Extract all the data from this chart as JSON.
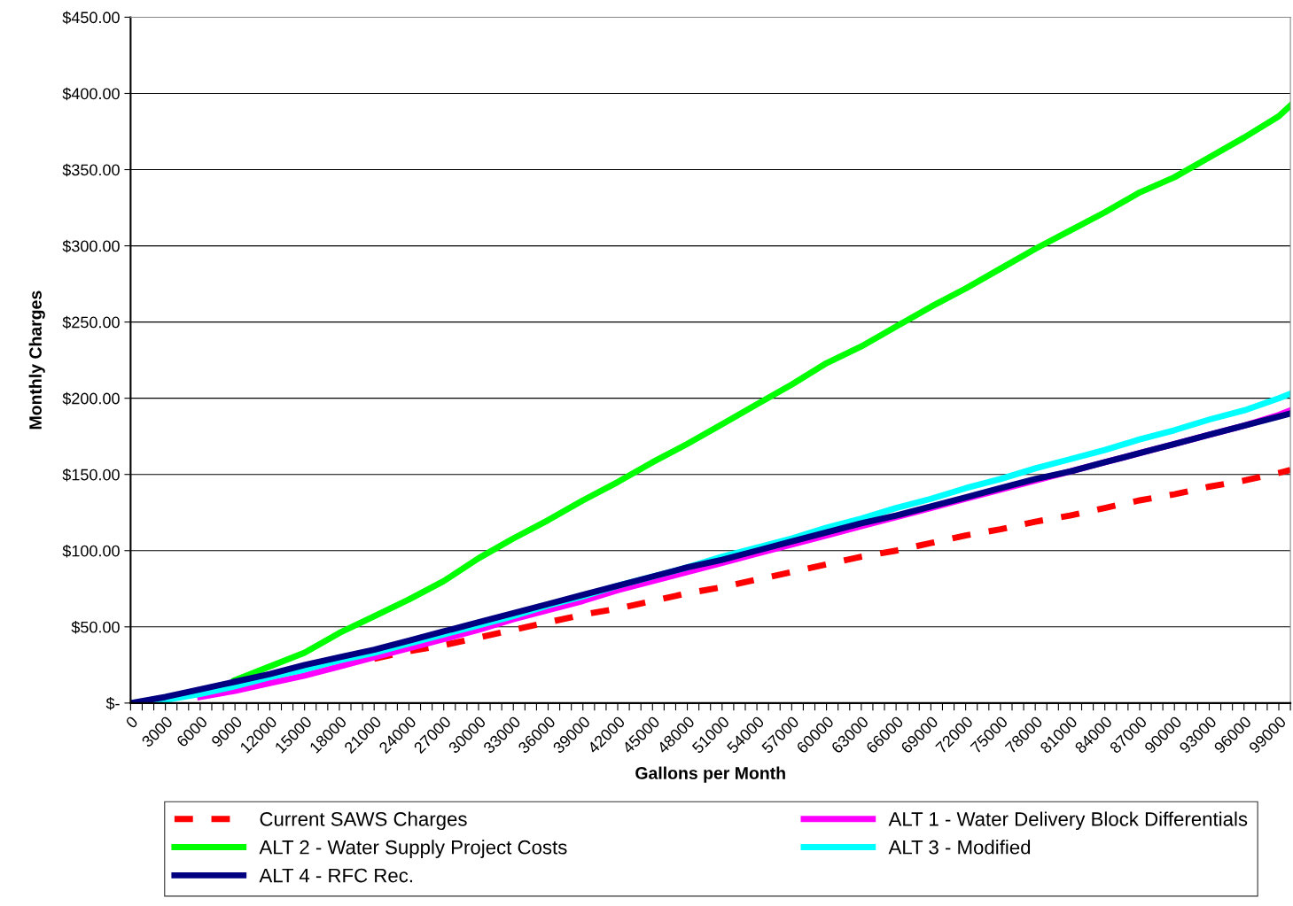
{
  "chart_data": {
    "type": "line",
    "xlabel": "Gallons per Month",
    "ylabel": "Monthly Charges",
    "x": [
      0,
      3000,
      6000,
      9000,
      12000,
      15000,
      18000,
      21000,
      24000,
      27000,
      30000,
      33000,
      36000,
      39000,
      42000,
      45000,
      48000,
      51000,
      54000,
      57000,
      60000,
      63000,
      66000,
      69000,
      72000,
      75000,
      78000,
      81000,
      84000,
      87000,
      90000,
      93000,
      96000,
      99000,
      100000
    ],
    "series": [
      {
        "name": "Current SAWS Charges",
        "color": "#ff0000",
        "line_style": "dashed",
        "values": [
          null,
          null,
          null,
          null,
          null,
          null,
          null,
          29,
          34,
          38,
          43,
          48,
          53,
          58,
          62,
          67,
          72,
          76,
          81,
          86,
          91,
          96,
          100,
          105,
          110,
          114,
          119,
          123,
          128,
          133,
          137,
          142,
          146,
          151,
          153
        ]
      },
      {
        "name": "ALT 1 - Water Delivery Block Differentials",
        "color": "#ff00ff",
        "values": [
          null,
          null,
          4,
          8,
          13,
          18,
          24,
          30,
          36,
          42,
          48,
          55,
          61,
          67,
          74,
          80,
          86,
          92,
          98,
          104,
          110,
          116,
          122,
          128,
          134,
          140,
          146,
          152,
          158,
          164,
          170,
          176,
          182,
          189,
          192
        ]
      },
      {
        "name": "ALT 2 - Water Supply Project Costs",
        "color": "#00ff00",
        "values": [
          null,
          null,
          null,
          15,
          24,
          33,
          46,
          57,
          68,
          80,
          95,
          108,
          120,
          133,
          145,
          158,
          170,
          183,
          196,
          209,
          223,
          234,
          247,
          260,
          272,
          285,
          298,
          310,
          322,
          335,
          345,
          358,
          371,
          385,
          392
        ]
      },
      {
        "name": "ALT 3 - Modified",
        "color": "#00ffff",
        "values": [
          0,
          2,
          6,
          11,
          17,
          22,
          28,
          33,
          39,
          45,
          51,
          57,
          64,
          70,
          77,
          83,
          89,
          96,
          102,
          108,
          115,
          121,
          128,
          134,
          141,
          147,
          154,
          160,
          166,
          173,
          179,
          186,
          192,
          200,
          203
        ]
      },
      {
        "name": "ALT 4 - RFC Rec.",
        "color": "#000080",
        "values": [
          0,
          4,
          9,
          14,
          19,
          25,
          30,
          35,
          41,
          47,
          53,
          59,
          65,
          71,
          77,
          83,
          89,
          94,
          100,
          106,
          112,
          118,
          123,
          129,
          135,
          141,
          147,
          152,
          158,
          164,
          170,
          176,
          182,
          188,
          190
        ]
      }
    ],
    "xlim": [
      0,
      100000
    ],
    "ylim": [
      0,
      450
    ],
    "yticks": [
      {
        "value": 0,
        "label": "$-"
      },
      {
        "value": 50,
        "label": "$50.00"
      },
      {
        "value": 100,
        "label": "$100.00"
      },
      {
        "value": 150,
        "label": "$150.00"
      },
      {
        "value": 200,
        "label": "$200.00"
      },
      {
        "value": 250,
        "label": "$250.00"
      },
      {
        "value": 300,
        "label": "$300.00"
      },
      {
        "value": 350,
        "label": "$350.00"
      },
      {
        "value": 400,
        "label": "$400.00"
      },
      {
        "value": 450,
        "label": "$450.00"
      }
    ],
    "xticks": [
      0,
      {
        "value": 1000,
        "label": null
      },
      {
        "value": 2000,
        "label": null
      },
      3000,
      {
        "value": 4000,
        "label": null
      },
      {
        "value": 5000,
        "label": null
      },
      6000,
      {
        "value": 7000,
        "label": null
      },
      {
        "value": 8000,
        "label": null
      },
      9000,
      {
        "value": 10000,
        "label": null
      },
      {
        "value": 11000,
        "label": null
      },
      12000,
      {
        "value": 13000,
        "label": null
      },
      {
        "value": 14000,
        "label": null
      },
      15000,
      {
        "value": 16000,
        "label": null
      },
      {
        "value": 17000,
        "label": null
      },
      18000,
      {
        "value": 19000,
        "label": null
      },
      {
        "value": 20000,
        "label": null
      },
      21000,
      {
        "value": 22000,
        "label": null
      },
      {
        "value": 23000,
        "label": null
      },
      24000,
      {
        "value": 25000,
        "label": null
      },
      {
        "value": 26000,
        "label": null
      },
      27000,
      {
        "value": 28000,
        "label": null
      },
      {
        "value": 29000,
        "label": null
      },
      30000,
      {
        "value": 31000,
        "label": null
      },
      {
        "value": 32000,
        "label": null
      },
      33000,
      {
        "value": 34000,
        "label": null
      },
      {
        "value": 35000,
        "label": null
      },
      36000,
      {
        "value": 37000,
        "label": null
      },
      {
        "value": 38000,
        "label": null
      },
      39000,
      {
        "value": 40000,
        "label": null
      },
      {
        "value": 41000,
        "label": null
      },
      42000,
      {
        "value": 43000,
        "label": null
      },
      {
        "value": 44000,
        "label": null
      },
      45000,
      {
        "value": 46000,
        "label": null
      },
      {
        "value": 47000,
        "label": null
      },
      48000,
      {
        "value": 49000,
        "label": null
      },
      {
        "value": 50000,
        "label": null
      },
      51000,
      {
        "value": 52000,
        "label": null
      },
      {
        "value": 53000,
        "label": null
      },
      54000,
      {
        "value": 55000,
        "label": null
      },
      {
        "value": 56000,
        "label": null
      },
      57000,
      {
        "value": 58000,
        "label": null
      },
      {
        "value": 59000,
        "label": null
      },
      60000,
      {
        "value": 61000,
        "label": null
      },
      {
        "value": 62000,
        "label": null
      },
      63000,
      {
        "value": 64000,
        "label": null
      },
      {
        "value": 65000,
        "label": null
      },
      66000,
      {
        "value": 67000,
        "label": null
      },
      {
        "value": 68000,
        "label": null
      },
      69000,
      {
        "value": 70000,
        "label": null
      },
      {
        "value": 71000,
        "label": null
      },
      72000,
      {
        "value": 73000,
        "label": null
      },
      {
        "value": 74000,
        "label": null
      },
      75000,
      {
        "value": 76000,
        "label": null
      },
      {
        "value": 77000,
        "label": null
      },
      78000,
      {
        "value": 79000,
        "label": null
      },
      {
        "value": 80000,
        "label": null
      },
      81000,
      {
        "value": 82000,
        "label": null
      },
      {
        "value": 83000,
        "label": null
      },
      84000,
      {
        "value": 85000,
        "label": null
      },
      {
        "value": 86000,
        "label": null
      },
      87000,
      {
        "value": 88000,
        "label": null
      },
      {
        "value": 89000,
        "label": null
      },
      90000,
      {
        "value": 91000,
        "label": null
      },
      {
        "value": 92000,
        "label": null
      },
      93000,
      {
        "value": 94000,
        "label": null
      },
      {
        "value": 95000,
        "label": null
      },
      96000,
      {
        "value": 97000,
        "label": null
      },
      {
        "value": 98000,
        "label": null
      },
      99000,
      {
        "value": 100000,
        "label": null
      }
    ],
    "grid": "y",
    "legend": "bottom",
    "marker": "none"
  }
}
